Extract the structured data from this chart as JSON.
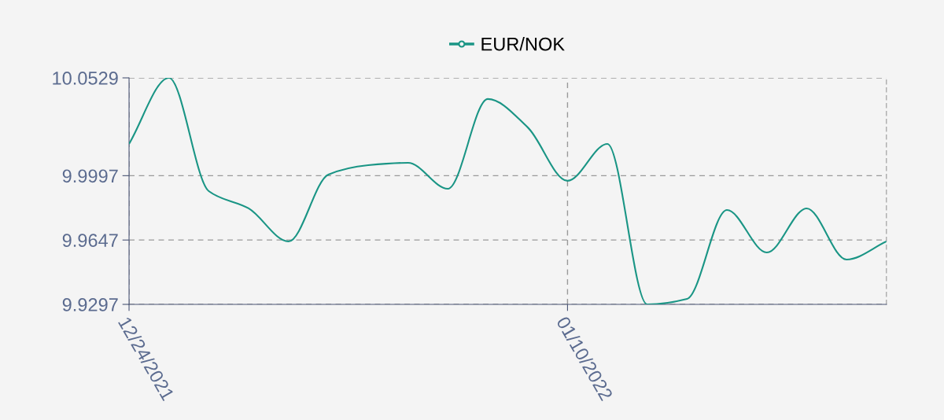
{
  "chart_data": {
    "type": "line",
    "categories": [
      "12/24/2021",
      null,
      null,
      null,
      null,
      null,
      null,
      null,
      null,
      null,
      null,
      "01/10/2022",
      null,
      null,
      null,
      null,
      null,
      null,
      null,
      null
    ],
    "series": [
      {
        "name": "EUR/NOK",
        "color": "#1a9585",
        "values": [
          10.017,
          10.0529,
          9.9913,
          9.9819,
          9.9639,
          10.0003,
          10.0054,
          10.0067,
          9.9926,
          10.0414,
          10.026,
          9.9969,
          10.017,
          9.9297,
          9.9327,
          9.981,
          9.9579,
          9.9819,
          9.9541,
          9.9639
        ]
      }
    ],
    "ylim": [
      9.9297,
      10.0529
    ],
    "yticks": [
      9.9297,
      9.9647,
      9.9997,
      10.0529
    ],
    "grid": true,
    "legend": "top",
    "line_style": "solid"
  }
}
